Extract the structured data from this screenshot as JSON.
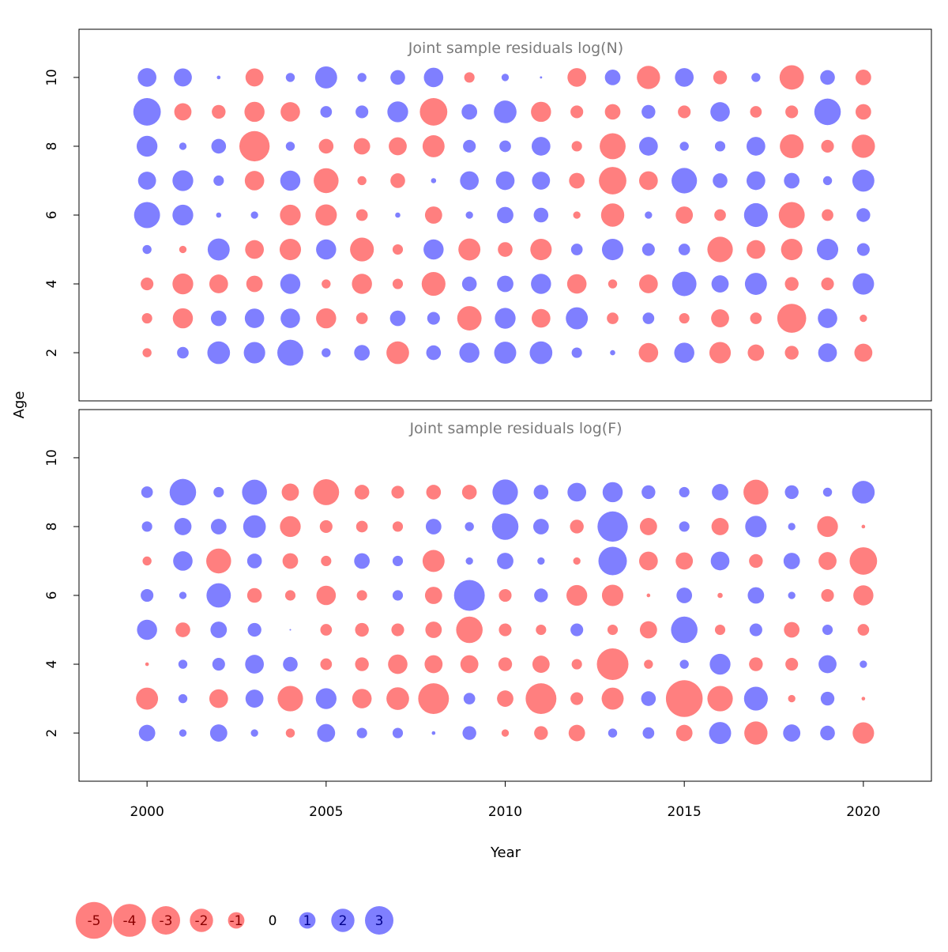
{
  "chart_data": {
    "type": "scatter",
    "xlabel": "Year",
    "ylabel": "Age",
    "x_ticks": [
      2000,
      2005,
      2010,
      2015,
      2020
    ],
    "y_ticks": [
      "2",
      "4",
      "6",
      "8",
      "10"
    ],
    "xlim": [
      1998.1,
      2021.9
    ],
    "colors": {
      "negative": "#ff7f7f",
      "positive": "#7f7fff"
    },
    "panels": [
      {
        "title": "Joint sample residuals log(N)",
        "ylim": [
          0.6,
          11.4
        ],
        "ages": [
          2,
          3,
          4,
          5,
          6,
          7,
          8,
          9,
          10
        ],
        "years": [
          2000,
          2001,
          2002,
          2003,
          2004,
          2005,
          2006,
          2007,
          2008,
          2009,
          2010,
          2011,
          2012,
          2013,
          2014,
          2015,
          2016,
          2017,
          2018,
          2019,
          2020
        ],
        "residuals": [
          [
            -0.3,
            0.5,
            1.9,
            1.7,
            2.5,
            0.3,
            0.9,
            -1.9,
            0.8,
            1.5,
            1.8,
            1.9,
            0.4,
            0.1,
            -1.4,
            1.5,
            -1.7,
            -1.0,
            -0.7,
            1.3,
            -1.2
          ],
          [
            -0.4,
            -1.5,
            0.9,
            1.4,
            1.4,
            -1.5,
            -0.5,
            0.9,
            0.6,
            -2.2,
            1.6,
            -1.3,
            1.8,
            -0.5,
            0.5,
            -0.4,
            -1.2,
            -0.5,
            -3.1,
            1.4,
            -0.2
          ],
          [
            -0.6,
            -1.6,
            -1.3,
            -1.0,
            1.5,
            -0.3,
            -1.5,
            -0.4,
            -2.1,
            0.8,
            1.0,
            1.5,
            -1.4,
            -0.3,
            -1.3,
            2.2,
            1.1,
            1.8,
            -0.7,
            -0.6,
            1.7
          ],
          [
            0.3,
            -0.2,
            1.8,
            -1.3,
            -1.7,
            1.5,
            -2.1,
            -0.4,
            1.5,
            -1.8,
            -0.8,
            -1.7,
            0.5,
            1.7,
            0.6,
            0.5,
            -2.4,
            -1.3,
            -1.7,
            1.7,
            0.6
          ],
          [
            2.5,
            1.6,
            0.1,
            0.2,
            -1.6,
            -1.7,
            -0.5,
            0.1,
            -1.1,
            0.2,
            1.0,
            0.8,
            -0.2,
            -2.0,
            0.2,
            -1.1,
            -0.5,
            2.1,
            -2.5,
            -0.5,
            0.7
          ],
          [
            1.2,
            1.6,
            0.4,
            -1.4,
            1.5,
            -2.3,
            -0.3,
            -0.8,
            0.1,
            1.3,
            1.3,
            1.2,
            -0.9,
            -2.8,
            -1.3,
            2.4,
            0.8,
            1.3,
            0.9,
            0.3,
            1.8
          ],
          [
            1.6,
            0.2,
            0.8,
            -3.4,
            0.3,
            -0.8,
            -1.0,
            -1.2,
            -1.8,
            0.6,
            0.5,
            1.3,
            -0.4,
            -2.5,
            1.3,
            0.3,
            0.4,
            1.3,
            -2.1,
            -0.6,
            -2.0
          ],
          [
            2.8,
            -1.1,
            -0.7,
            -1.5,
            -1.4,
            0.5,
            0.6,
            1.6,
            -2.8,
            0.9,
            1.9,
            -1.5,
            -0.6,
            -0.9,
            0.7,
            -0.6,
            1.4,
            -0.5,
            -0.6,
            2.6,
            -0.9
          ],
          [
            1.3,
            1.2,
            0.05,
            -1.2,
            0.3,
            1.8,
            0.3,
            0.8,
            1.4,
            -0.4,
            0.2,
            0.02,
            -1.3,
            0.9,
            -2.0,
            1.3,
            -0.7,
            0.3,
            -2.2,
            0.8,
            -0.9
          ]
        ]
      },
      {
        "title": "Joint sample residuals log(F)",
        "ylim": [
          0.6,
          11.4
        ],
        "ages": [
          2,
          3,
          4,
          5,
          6,
          7,
          8,
          9
        ],
        "years": [
          2000,
          2001,
          2002,
          2003,
          2004,
          2005,
          2006,
          2007,
          2008,
          2009,
          2010,
          2011,
          2012,
          2013,
          2014,
          2015,
          2016,
          2017,
          2018,
          2019,
          2020
        ],
        "residuals": [
          [
            1.0,
            0.2,
            1.1,
            0.2,
            -0.3,
            1.2,
            0.4,
            0.4,
            0.05,
            0.7,
            -0.2,
            -0.7,
            -1.0,
            0.3,
            0.5,
            -1.0,
            1.8,
            -2.0,
            1.1,
            0.8,
            -1.7
          ],
          [
            -1.8,
            0.3,
            -1.3,
            1.2,
            -2.4,
            1.6,
            -1.4,
            -1.9,
            -3.5,
            0.5,
            -1.0,
            -3.5,
            -0.6,
            -1.8,
            0.8,
            -5.0,
            -2.4,
            2.1,
            -0.2,
            0.7,
            -0.05
          ],
          [
            -0.05,
            0.3,
            0.6,
            1.3,
            0.8,
            -0.5,
            -0.7,
            -1.4,
            -1.2,
            -1.2,
            -0.7,
            -1.1,
            -0.4,
            -3.7,
            -0.3,
            0.3,
            1.6,
            -0.7,
            -0.6,
            1.2,
            0.2
          ],
          [
            1.5,
            -0.8,
            1.0,
            0.7,
            0.01,
            -0.5,
            -0.7,
            -0.6,
            -1.0,
            -2.6,
            -0.6,
            -0.4,
            0.6,
            -0.4,
            -1.1,
            2.6,
            -0.4,
            0.6,
            -0.9,
            0.4,
            -0.5
          ],
          [
            0.6,
            0.2,
            2.2,
            -0.8,
            -0.4,
            -1.4,
            -0.4,
            0.4,
            -1.1,
            3.5,
            -0.6,
            0.7,
            -1.6,
            -1.7,
            -0.05,
            0.9,
            -0.1,
            1.0,
            0.2,
            -0.6,
            -1.5
          ],
          [
            -0.3,
            1.4,
            -2.3,
            0.8,
            -0.9,
            -0.4,
            0.9,
            0.4,
            -1.8,
            0.2,
            1.0,
            0.2,
            -0.2,
            3.0,
            -1.3,
            -1.1,
            1.3,
            -0.7,
            1.0,
            -1.2,
            -2.8
          ],
          [
            0.4,
            1.1,
            0.9,
            1.9,
            -1.6,
            -0.6,
            -0.5,
            -0.4,
            0.9,
            0.3,
            2.6,
            0.9,
            -0.7,
            3.4,
            -1.1,
            0.4,
            -1.1,
            1.7,
            0.2,
            -1.6,
            -0.05
          ],
          [
            0.5,
            2.6,
            0.4,
            2.3,
            -1.1,
            -2.5,
            -0.8,
            -0.6,
            -0.8,
            -0.8,
            2.4,
            0.8,
            1.3,
            1.5,
            0.7,
            0.4,
            1.0,
            -2.3,
            0.7,
            0.3,
            1.9
          ]
        ]
      }
    ],
    "legend": {
      "values": [
        -5,
        -4,
        -3,
        -2,
        -1,
        0,
        1,
        2,
        3
      ],
      "labels": [
        "-5",
        "-4",
        "-3",
        "-2",
        "-1",
        "0",
        "1",
        "2",
        "3"
      ],
      "placement": "bottom-left"
    }
  }
}
